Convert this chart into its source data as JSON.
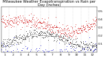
{
  "title": "Milwaukee Weather Evapotranspiration vs Rain per Day (Inches)",
  "background_color": "#ffffff",
  "plot_bg_color": "#ffffff",
  "et_color": "#cc0000",
  "rain_color": "#0000cc",
  "black_color": "#111111",
  "ylim": [
    0.0,
    0.55
  ],
  "xlim": [
    0,
    365
  ],
  "vline_color": "#bbbbbb",
  "vline_positions": [
    31,
    59,
    90,
    120,
    151,
    181,
    212,
    243,
    273,
    304,
    334
  ],
  "month_labels": [
    "1",
    "2",
    "3",
    "4",
    "5",
    "6",
    "7",
    "8",
    "9",
    "10",
    "11",
    "12"
  ],
  "month_positions": [
    15,
    45,
    74,
    105,
    135,
    166,
    196,
    227,
    258,
    288,
    319,
    349
  ],
  "ytick_labels": [
    "0.1",
    "0.2",
    "0.3",
    "0.4",
    "0.5"
  ],
  "ytick_values": [
    0.1,
    0.2,
    0.3,
    0.4,
    0.5
  ],
  "tick_fontsize": 3.2,
  "title_fontsize": 3.8,
  "seed": 42
}
